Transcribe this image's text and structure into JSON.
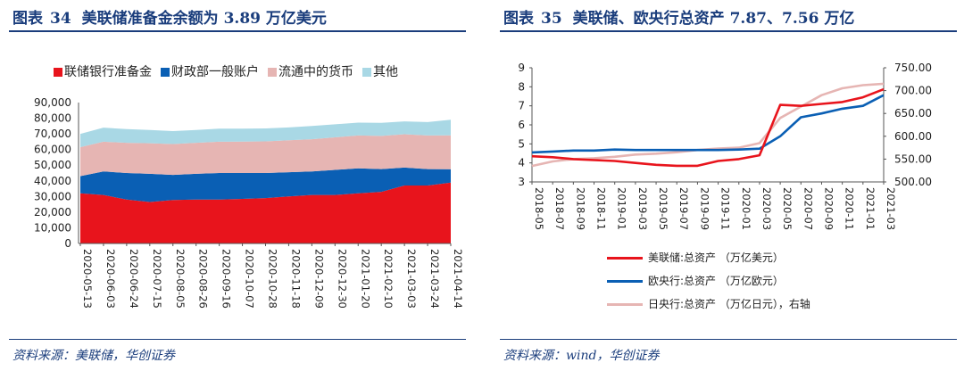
{
  "left": {
    "figure_label": "图表",
    "figure_number": "34",
    "title": "美联储准备金余额为 3.89 万亿美元",
    "source": "资料来源：美联储，华创证券"
  },
  "right": {
    "figure_label": "图表",
    "figure_number": "35",
    "title": "美联储、欧央行总资产 7.87、7.56 万亿",
    "source": "资料来源：wind，华创证券"
  },
  "chart_data": [
    {
      "type": "area",
      "stacked": true,
      "title": "美联储准备金余额为 3.89 万亿美元",
      "ylim": [
        0,
        90000
      ],
      "yticks": [
        "0",
        "10,000",
        "20,000",
        "30,000",
        "40,000",
        "50,000",
        "60,000",
        "70,000",
        "80,000",
        "90,000"
      ],
      "categories": [
        "2020-05-13",
        "2020-06-03",
        "2020-06-24",
        "2020-07-15",
        "2020-08-05",
        "2020-08-26",
        "2020-09-16",
        "2020-10-07",
        "2020-10-28",
        "2020-11-18",
        "2020-12-09",
        "2020-12-30",
        "2021-01-20",
        "2021-02-10",
        "2021-03-03",
        "2021-03-24",
        "2021-04-14"
      ],
      "legend": [
        "联储银行准备金",
        "财政部一般账户",
        "流通中的货币",
        "其他"
      ],
      "colors": [
        "#e8141c",
        "#0a5fb4",
        "#e6b5b3",
        "#a9d8e5"
      ],
      "series": [
        {
          "name": "联储银行准备金",
          "values": [
            32000,
            31000,
            28000,
            26500,
            27800,
            28000,
            28000,
            28500,
            29000,
            30000,
            31000,
            31000,
            32000,
            33000,
            37000,
            37000,
            38900
          ]
        },
        {
          "name": "财政部一般账户",
          "values": [
            11000,
            15000,
            17000,
            18000,
            16000,
            16500,
            17000,
            16500,
            16000,
            15500,
            15000,
            16000,
            16000,
            14500,
            11500,
            10500,
            8500
          ]
        },
        {
          "name": "流通中的货币",
          "values": [
            18500,
            19000,
            19300,
            19500,
            19700,
            19800,
            20000,
            20100,
            20200,
            20400,
            20600,
            20800,
            21000,
            21200,
            21300,
            21500,
            21700
          ]
        },
        {
          "name": "其他",
          "values": [
            8500,
            9000,
            8700,
            8500,
            8300,
            8200,
            8300,
            8200,
            8300,
            8200,
            8500,
            8300,
            8200,
            8300,
            8200,
            8500,
            9900
          ]
        }
      ]
    },
    {
      "type": "line",
      "title": "美联储、欧央行总资产 7.87、7.56 万亿",
      "ylim": [
        3,
        9
      ],
      "y2lim": [
        500,
        750
      ],
      "yticks": [
        "3",
        "4",
        "5",
        "6",
        "7",
        "8",
        "9"
      ],
      "y2ticks": [
        "500.00",
        "550.00",
        "600.00",
        "650.00",
        "700.00",
        "750.00"
      ],
      "categories": [
        "2018-05",
        "2018-07",
        "2018-09",
        "2018-11",
        "2019-01",
        "2019-03",
        "2019-05",
        "2019-07",
        "2019-09",
        "2019-11",
        "2020-01",
        "2020-03",
        "2020-05",
        "2020-07",
        "2020-09",
        "2020-11",
        "2021-01",
        "2021-03"
      ],
      "series": [
        {
          "name": "美联储:总资产 （万亿美元）",
          "axis": "left",
          "color": "#e8141c",
          "values": [
            4.35,
            4.3,
            4.2,
            4.15,
            4.1,
            4.0,
            3.9,
            3.85,
            3.85,
            4.1,
            4.2,
            4.4,
            7.05,
            7.0,
            7.1,
            7.2,
            7.45,
            7.87
          ]
        },
        {
          "name": "欧央行:总资产 （万亿欧元）",
          "axis": "left",
          "color": "#0a5fb4",
          "values": [
            4.55,
            4.6,
            4.65,
            4.65,
            4.7,
            4.68,
            4.68,
            4.68,
            4.68,
            4.68,
            4.7,
            4.75,
            5.4,
            6.4,
            6.6,
            6.85,
            7.0,
            7.56
          ]
        },
        {
          "name": "日央行:总资产 （万亿日元），右轴",
          "axis": "right",
          "color": "#e6b5b3",
          "values": [
            535,
            545,
            550,
            552,
            555,
            560,
            562,
            565,
            570,
            573,
            575,
            585,
            640,
            665,
            690,
            705,
            712,
            715
          ]
        }
      ]
    }
  ]
}
